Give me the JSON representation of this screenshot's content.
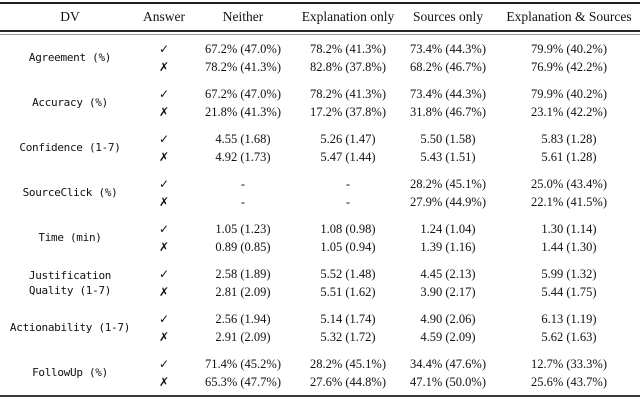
{
  "page": {
    "background": "#ffffff",
    "text_color": "#111111",
    "rule_color": "#1f1f1f"
  },
  "table": {
    "columns": [
      "DV",
      "Answer",
      "Neither",
      "Explanation only",
      "Sources only",
      "Explanation & Sources"
    ],
    "answer_symbols": {
      "yes": "✓",
      "no": "✗"
    },
    "rows": [
      {
        "dv_lines": [
          "Agreement (%)"
        ],
        "yes": [
          "67.2% (47.0%)",
          "78.2% (41.3%)",
          "73.4% (44.3%)",
          "79.9% (40.2%)"
        ],
        "no": [
          "78.2% (41.3%)",
          "82.8% (37.8%)",
          "68.2% (46.7%)",
          "76.9% (42.2%)"
        ]
      },
      {
        "dv_lines": [
          "Accuracy (%)"
        ],
        "yes": [
          "67.2% (47.0%)",
          "78.2% (41.3%)",
          "73.4% (44.3%)",
          "79.9% (40.2%)"
        ],
        "no": [
          "21.8% (41.3%)",
          "17.2% (37.8%)",
          "31.8% (46.7%)",
          "23.1% (42.2%)"
        ]
      },
      {
        "dv_lines": [
          "Confidence (1-7)"
        ],
        "yes": [
          "4.55 (1.68)",
          "5.26 (1.47)",
          "5.50 (1.58)",
          "5.83 (1.28)"
        ],
        "no": [
          "4.92 (1.73)",
          "5.47 (1.44)",
          "5.43 (1.51)",
          "5.61 (1.28)"
        ]
      },
      {
        "dv_lines": [
          "SourceClick (%)"
        ],
        "yes": [
          "-",
          "-",
          "28.2% (45.1%)",
          "25.0% (43.4%)"
        ],
        "no": [
          "-",
          "-",
          "27.9% (44.9%)",
          "22.1% (41.5%)"
        ]
      },
      {
        "dv_lines": [
          "Time (min)"
        ],
        "yes": [
          "1.05 (1.23)",
          "1.08 (0.98)",
          "1.24 (1.04)",
          "1.30 (1.14)"
        ],
        "no": [
          "0.89 (0.85)",
          "1.05 (0.94)",
          "1.39 (1.16)",
          "1.44 (1.30)"
        ]
      },
      {
        "dv_lines": [
          "Justification",
          "Quality (1-7)"
        ],
        "yes": [
          "2.58 (1.89)",
          "5.52 (1.48)",
          "4.45 (2.13)",
          "5.99 (1.32)"
        ],
        "no": [
          "2.81 (2.09)",
          "5.51 (1.62)",
          "3.90 (2.17)",
          "5.44 (1.75)"
        ]
      },
      {
        "dv_lines": [
          "Actionability (1-7)"
        ],
        "yes": [
          "2.56 (1.94)",
          "5.14 (1.74)",
          "4.90 (2.06)",
          "6.13 (1.19)"
        ],
        "no": [
          "2.91 (2.09)",
          "5.32 (1.72)",
          "4.59 (2.09)",
          "5.62 (1.63)"
        ]
      },
      {
        "dv_lines": [
          "FollowUp (%)"
        ],
        "yes": [
          "71.4% (45.2%)",
          "28.2% (45.1%)",
          "34.4% (47.6%)",
          "12.7% (33.3%)"
        ],
        "no": [
          "65.3% (47.7%)",
          "27.6% (44.8%)",
          "47.1% (50.0%)",
          "25.6% (43.7%)"
        ]
      }
    ]
  }
}
